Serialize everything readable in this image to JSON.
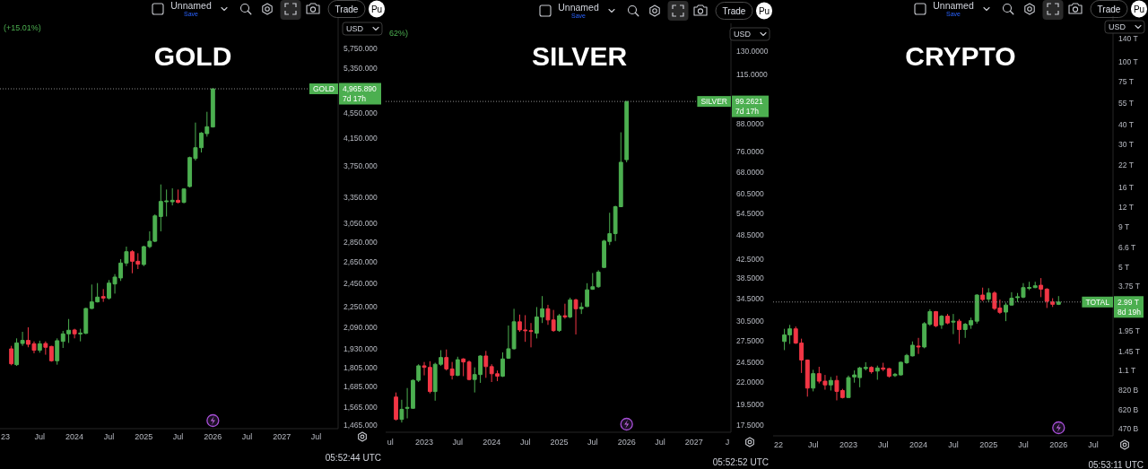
{
  "chart_data": [
    {
      "type": "candlestick",
      "title": "GOLD",
      "x": [
        "2023-02",
        "2023-03",
        "2023-04",
        "2023-05",
        "2023-06",
        "2023-07",
        "2023-08",
        "2023-09",
        "2023-10",
        "2023-11",
        "2023-12",
        "2024-01",
        "2024-02",
        "2024-03",
        "2024-04",
        "2024-05",
        "2024-06",
        "2024-07",
        "2024-08",
        "2024-09",
        "2024-10",
        "2024-11",
        "2024-12",
        "2025-01",
        "2025-02",
        "2025-03",
        "2025-04",
        "2025-05",
        "2025-06",
        "2025-07",
        "2025-08",
        "2025-09",
        "2025-10",
        "2025-11",
        "2025-12",
        "2026-01"
      ],
      "ohlc": [
        [
          1932,
          1953,
          1820,
          1830
        ],
        [
          1824,
          2007,
          1816,
          1974
        ],
        [
          1970,
          2055,
          1953,
          1992
        ],
        [
          1992,
          2089,
          1943,
          1964
        ],
        [
          1968,
          1985,
          1901,
          1922
        ],
        [
          1922,
          1990,
          1905,
          1968
        ],
        [
          1970,
          1985,
          1891,
          1943
        ],
        [
          1949,
          1953,
          1844,
          1850
        ],
        [
          1850,
          2007,
          1824,
          1990
        ],
        [
          1985,
          2062,
          1938,
          2040
        ],
        [
          2040,
          2153,
          1974,
          2067
        ],
        [
          2069,
          2078,
          2007,
          2040
        ],
        [
          2040,
          2078,
          1985,
          2046
        ],
        [
          2044,
          2242,
          2038,
          2237
        ],
        [
          2237,
          2440,
          2232,
          2291
        ],
        [
          2291,
          2453,
          2286,
          2331
        ],
        [
          2336,
          2400,
          2291,
          2323
        ],
        [
          2323,
          2480,
          2311,
          2453
        ],
        [
          2445,
          2534,
          2361,
          2507
        ],
        [
          2499,
          2675,
          2472,
          2638
        ],
        [
          2638,
          2800,
          2609,
          2749
        ],
        [
          2749,
          2764,
          2542,
          2655
        ],
        [
          2655,
          2734,
          2581,
          2627
        ],
        [
          2624,
          2809,
          2609,
          2800
        ],
        [
          2800,
          2960,
          2785,
          2855
        ],
        [
          2855,
          3148,
          2846,
          3131
        ],
        [
          3124,
          3509,
          2960,
          3299
        ],
        [
          3295,
          3445,
          3124,
          3306
        ],
        [
          3295,
          3460,
          3252,
          3313
        ],
        [
          3313,
          3445,
          3277,
          3288
        ],
        [
          3288,
          3460,
          3277,
          3452
        ],
        [
          3483,
          3882,
          3471,
          3869
        ],
        [
          3856,
          4393,
          3827,
          4010
        ],
        [
          4010,
          4243,
          3941,
          4229
        ],
        [
          4220,
          4568,
          4174,
          4327
        ],
        [
          4323,
          4965.89,
          4315,
          4965.89
        ]
      ],
      "colors": [
        "#f23645",
        "#4caf50",
        "#4caf50",
        "#f23645",
        "#f23645",
        "#4caf50",
        "#f23645",
        "#f23645",
        "#4caf50",
        "#4caf50",
        "#4caf50",
        "#f23645",
        "#4caf50",
        "#4caf50",
        "#4caf50",
        "#4caf50",
        "#f23645",
        "#4caf50",
        "#4caf50",
        "#4caf50",
        "#4caf50",
        "#f23645",
        "#f23645",
        "#4caf50",
        "#4caf50",
        "#4caf50",
        "#4caf50",
        "#4caf50",
        "#4caf50",
        "#f23645",
        "#4caf50",
        "#4caf50",
        "#4caf50",
        "#4caf50",
        "#4caf50",
        "#4caf50"
      ],
      "xlim": [
        "2022-12-03",
        "2027-10-25"
      ],
      "xticks": [
        {
          "value": "2023-01",
          "label": "23"
        },
        {
          "value": "2023-07",
          "label": "Jul"
        },
        {
          "value": "2024-01",
          "label": "2024"
        },
        {
          "value": "2024-07",
          "label": "Jul"
        },
        {
          "value": "2025-01",
          "label": "2025"
        },
        {
          "value": "2025-07",
          "label": "Jul"
        },
        {
          "value": "2026-01",
          "label": "2026"
        },
        {
          "value": "2026-07",
          "label": "Jul"
        },
        {
          "value": "2027-01",
          "label": "2027"
        },
        {
          "value": "2027-07",
          "label": "Jul"
        }
      ],
      "ylim": [
        1446,
        6423
      ],
      "yticks": [
        {
          "value": 5750,
          "label": "5,750.000"
        },
        {
          "value": 5350,
          "label": "5,350.000"
        },
        {
          "value": 4550,
          "label": "4,550.000"
        },
        {
          "value": 4150,
          "label": "4,150.000"
        },
        {
          "value": 3750,
          "label": "3,750.000"
        },
        {
          "value": 3350,
          "label": "3,350.000"
        },
        {
          "value": 3050,
          "label": "3,050.000"
        },
        {
          "value": 2850,
          "label": "2,850.000"
        },
        {
          "value": 2650,
          "label": "2,650.000"
        },
        {
          "value": 2450,
          "label": "2,450.000"
        },
        {
          "value": 2250,
          "label": "2,250.000"
        },
        {
          "value": 2090,
          "label": "2,090.000"
        },
        {
          "value": 1930,
          "label": "1,930.000"
        },
        {
          "value": 1805,
          "label": "1,805.000"
        },
        {
          "value": 1685,
          "label": "1,685.000"
        },
        {
          "value": 1565,
          "label": "1,565.000"
        },
        {
          "value": 1465,
          "label": "1,465.000"
        }
      ],
      "log": true,
      "ref_lines": [
        {
          "axis": "y",
          "value": 4965.89,
          "label": "GOLD",
          "color": "#8c8c8c",
          "line_style": "dotted"
        }
      ],
      "annotations": [
        "05:52:44 UTC",
        "USD",
        "Unnamed",
        "Save",
        "Trade",
        "Pu",
        "4,965.890",
        "7d 17h",
        "(+15.01%)"
      ]
    },
    {
      "type": "candlestick",
      "title": "SILVER",
      "x": [
        "2022-08",
        "2022-09",
        "2022-10",
        "2022-11",
        "2022-12",
        "2023-01",
        "2023-02",
        "2023-03",
        "2023-04",
        "2023-05",
        "2023-06",
        "2023-07",
        "2023-08",
        "2023-09",
        "2023-10",
        "2023-11",
        "2023-12",
        "2024-01",
        "2024-02",
        "2024-03",
        "2024-04",
        "2024-05",
        "2024-06",
        "2024-07",
        "2024-08",
        "2024-09",
        "2024-10",
        "2024-11",
        "2024-12",
        "2025-01",
        "2025-02",
        "2025-03",
        "2025-04",
        "2025-05",
        "2025-06",
        "2025-07",
        "2025-08",
        "2025-09",
        "2025-10",
        "2025-11",
        "2025-12",
        "2026-01"
      ],
      "ohlc": [
        [
          20.3,
          20.8,
          17.9,
          18.0
        ],
        [
          18.0,
          20.0,
          17.7,
          19.0
        ],
        [
          19.1,
          21.3,
          18.1,
          19.2
        ],
        [
          19.1,
          22.3,
          19.1,
          22.2
        ],
        [
          22.2,
          24.2,
          22.0,
          24.0
        ],
        [
          24.0,
          24.5,
          22.8,
          23.8
        ],
        [
          23.8,
          24.6,
          20.7,
          20.9
        ],
        [
          20.9,
          24.4,
          19.9,
          24.2
        ],
        [
          24.2,
          26.1,
          24.0,
          25.1
        ],
        [
          25.1,
          26.2,
          23.4,
          23.6
        ],
        [
          23.6,
          24.5,
          22.3,
          22.8
        ],
        [
          22.8,
          25.2,
          22.7,
          24.8
        ],
        [
          24.9,
          25.0,
          22.7,
          24.5
        ],
        [
          24.5,
          24.7,
          22.2,
          22.3
        ],
        [
          22.3,
          23.8,
          20.8,
          22.9
        ],
        [
          22.9,
          25.4,
          21.9,
          25.3
        ],
        [
          25.3,
          26.0,
          22.5,
          23.9
        ],
        [
          23.9,
          24.2,
          22.0,
          23.0
        ],
        [
          23.0,
          23.4,
          22.1,
          22.7
        ],
        [
          22.7,
          25.8,
          22.6,
          24.9
        ],
        [
          25.0,
          29.8,
          24.9,
          26.3
        ],
        [
          26.3,
          32.6,
          26.2,
          30.4
        ],
        [
          30.4,
          31.6,
          28.8,
          29.1
        ],
        [
          29.1,
          31.5,
          27.3,
          29.0
        ],
        [
          29.0,
          30.2,
          26.5,
          28.9
        ],
        [
          28.6,
          32.9,
          27.8,
          31.2
        ],
        [
          31.2,
          34.9,
          30.2,
          32.6
        ],
        [
          32.6,
          33.3,
          29.9,
          30.7
        ],
        [
          30.7,
          32.4,
          28.8,
          29.0
        ],
        [
          29.0,
          31.7,
          28.8,
          31.4
        ],
        [
          31.4,
          33.5,
          30.9,
          31.2
        ],
        [
          31.2,
          34.6,
          31.0,
          34.2
        ],
        [
          34.2,
          34.4,
          28.4,
          32.6
        ],
        [
          32.6,
          33.7,
          31.7,
          32.9
        ],
        [
          33.0,
          37.4,
          32.9,
          36.1
        ],
        [
          36.2,
          39.5,
          36.1,
          36.7
        ],
        [
          36.7,
          40.1,
          36.5,
          39.7
        ],
        [
          40.7,
          47.2,
          40.6,
          46.9
        ],
        [
          46.8,
          54.6,
          45.9,
          48.8
        ],
        [
          48.8,
          56.7,
          46.9,
          56.4
        ],
        [
          56.4,
          84.1,
          56.3,
          71.6
        ],
        [
          72.6,
          99.2621,
          71.6,
          99.2621
        ]
      ],
      "colors": [
        "#f23645",
        "#4caf50",
        "#4caf50",
        "#4caf50",
        "#4caf50",
        "#f23645",
        "#f23645",
        "#4caf50",
        "#4caf50",
        "#f23645",
        "#f23645",
        "#4caf50",
        "#f23645",
        "#f23645",
        "#4caf50",
        "#4caf50",
        "#f23645",
        "#f23645",
        "#f23645",
        "#4caf50",
        "#4caf50",
        "#4caf50",
        "#f23645",
        "#f23645",
        "#f23645",
        "#4caf50",
        "#4caf50",
        "#f23645",
        "#f23645",
        "#4caf50",
        "#f23645",
        "#4caf50",
        "#f23645",
        "#4caf50",
        "#4caf50",
        "#4caf50",
        "#4caf50",
        "#4caf50",
        "#4caf50",
        "#4caf50",
        "#4caf50",
        "#4caf50"
      ],
      "xlim": [
        "2022-06-06",
        "2027-07-20"
      ],
      "xticks": [
        {
          "value": "2022-07",
          "label": "ul"
        },
        {
          "value": "2023-01",
          "label": "2023"
        },
        {
          "value": "2023-07",
          "label": "Jul"
        },
        {
          "value": "2024-01",
          "label": "2024"
        },
        {
          "value": "2024-07",
          "label": "Jul"
        },
        {
          "value": "2025-01",
          "label": "2025"
        },
        {
          "value": "2025-07",
          "label": "Jul"
        },
        {
          "value": "2026-01",
          "label": "2026"
        },
        {
          "value": "2026-07",
          "label": "Jul"
        },
        {
          "value": "2027-01",
          "label": "2027"
        },
        {
          "value": "2027-07",
          "label": "J"
        }
      ],
      "ylim": [
        16.8,
        151
      ],
      "yticks": [
        {
          "value": 130,
          "label": "130.0000"
        },
        {
          "value": 115,
          "label": "115.0000"
        },
        {
          "value": 88,
          "label": "88.0000"
        },
        {
          "value": 76,
          "label": "76.0000"
        },
        {
          "value": 68,
          "label": "68.0000"
        },
        {
          "value": 60.5,
          "label": "60.5000"
        },
        {
          "value": 54.5,
          "label": "54.5000"
        },
        {
          "value": 48.5,
          "label": "48.5000"
        },
        {
          "value": 42.5,
          "label": "42.5000"
        },
        {
          "value": 38.5,
          "label": "38.5000"
        },
        {
          "value": 34.5,
          "label": "34.5000"
        },
        {
          "value": 30.5,
          "label": "30.5000"
        },
        {
          "value": 27.5,
          "label": "27.5000"
        },
        {
          "value": 24.5,
          "label": "24.5000"
        },
        {
          "value": 22,
          "label": "22.0000"
        },
        {
          "value": 19.5,
          "label": "19.5000"
        },
        {
          "value": 17.5,
          "label": "17.5000"
        }
      ],
      "log": true,
      "ref_lines": [
        {
          "axis": "y",
          "value": 99.2621,
          "label": "SILVER",
          "color": "#8c8c8c",
          "line_style": "dotted"
        }
      ],
      "annotations": [
        "05:52:52 UTC",
        "USD",
        "Unnamed",
        "Save",
        "Trade",
        "Pu",
        "99.2621",
        "7d 17h",
        "62%)"
      ]
    },
    {
      "type": "candlestick",
      "title": "CRYPTO",
      "x": [
        "2022-02",
        "2022-03",
        "2022-04",
        "2022-05",
        "2022-06",
        "2022-07",
        "2022-08",
        "2022-09",
        "2022-10",
        "2022-11",
        "2022-12",
        "2023-01",
        "2023-02",
        "2023-03",
        "2023-04",
        "2023-05",
        "2023-06",
        "2023-07",
        "2023-08",
        "2023-09",
        "2023-10",
        "2023-11",
        "2023-12",
        "2024-01",
        "2024-02",
        "2024-03",
        "2024-04",
        "2024-05",
        "2024-06",
        "2024-07",
        "2024-08",
        "2024-09",
        "2024-10",
        "2024-11",
        "2024-12",
        "2025-01",
        "2025-02",
        "2025-03",
        "2025-04",
        "2025-05",
        "2025-06",
        "2025-07",
        "2025-08",
        "2025-09",
        "2025-10",
        "2025-11",
        "2025-12",
        "2026-01"
      ],
      "ohlc": [
        [
          1680000000000.0,
          2020000000000.0,
          1480000000000.0,
          1850000000000.0
        ],
        [
          1850000000000.0,
          2140000000000.0,
          1620000000000.0,
          2020000000000.0
        ],
        [
          2020000000000.0,
          2090000000000.0,
          1620000000000.0,
          1640000000000.0
        ],
        [
          1640000000000.0,
          1750000000000.0,
          1060000000000.0,
          1280000000000.0
        ],
        [
          1280000000000.0,
          1290000000000.0,
          750000000000.0,
          850000000000.0
        ],
        [
          850000000000.0,
          1110000000000.0,
          810000000000.0,
          1050000000000.0
        ],
        [
          1050000000000.0,
          1160000000000.0,
          910000000000.0,
          940000000000.0
        ],
        [
          940000000000.0,
          1030000000000.0,
          830000000000.0,
          890000000000.0
        ],
        [
          890000000000.0,
          1000000000000.0,
          820000000000.0,
          950000000000.0
        ],
        [
          950000000000.0,
          1020000000000.0,
          710000000000.0,
          810000000000.0
        ],
        [
          820000000000.0,
          840000000000.0,
          730000000000.0,
          740000000000.0
        ],
        [
          740000000000.0,
          1020000000000.0,
          740000000000.0,
          990000000000.0
        ],
        [
          1000000000000.0,
          1100000000000.0,
          920000000000.0,
          1030000000000.0
        ],
        [
          990000000000.0,
          1160000000000.0,
          860000000000.0,
          1140000000000.0
        ],
        [
          1130000000000.0,
          1240000000000.0,
          1100000000000.0,
          1150000000000.0
        ],
        [
          1150000000000.0,
          1170000000000.0,
          1050000000000.0,
          1080000000000.0
        ],
        [
          1090000000000.0,
          1180000000000.0,
          960000000000.0,
          1140000000000.0
        ],
        [
          1140000000000.0,
          1230000000000.0,
          1090000000000.0,
          1120000000000.0
        ],
        [
          1130000000000.0,
          1140000000000.0,
          990000000000.0,
          1010000000000.0
        ],
        [
          1020000000000.0,
          1060000000000.0,
          1000000000000.0,
          1040000000000.0
        ],
        [
          1030000000000.0,
          1250000000000.0,
          1020000000000.0,
          1240000000000.0
        ],
        [
          1230000000000.0,
          1400000000000.0,
          1210000000000.0,
          1370000000000.0
        ],
        [
          1360000000000.0,
          1680000000000.0,
          1350000000000.0,
          1590000000000.0
        ],
        [
          1570000000000.0,
          1770000000000.0,
          1400000000000.0,
          1550000000000.0
        ],
        [
          1550000000000.0,
          2230000000000.0,
          1520000000000.0,
          2180000000000.0
        ],
        [
          2160000000000.0,
          2690000000000.0,
          2110000000000.0,
          2600000000000.0
        ],
        [
          2600000000000.0,
          2620000000000.0,
          2070000000000.0,
          2110000000000.0
        ],
        [
          2140000000000.0,
          2470000000000.0,
          2020000000000.0,
          2430000000000.0
        ],
        [
          2430000000000.0,
          2510000000000.0,
          2160000000000.0,
          2200000000000.0
        ],
        [
          2230000000000.0,
          2510000000000.0,
          1870000000000.0,
          2260000000000.0
        ],
        [
          2260000000000.0,
          2330000000000.0,
          1620000000000.0,
          2000000000000.0
        ],
        [
          2000000000000.0,
          2200000000000.0,
          1770000000000.0,
          2160000000000.0
        ],
        [
          2140000000000.0,
          2380000000000.0,
          2020000000000.0,
          2280000000000.0
        ],
        [
          2260000000000.0,
          3350000000000.0,
          2180000000000.0,
          3310000000000.0
        ],
        [
          3310000000000.0,
          3690000000000.0,
          3030000000000.0,
          3100000000000.0
        ],
        [
          3120000000000.0,
          3660000000000.0,
          2990000000000.0,
          3410000000000.0
        ],
        [
          3410000000000.0,
          3500000000000.0,
          2660000000000.0,
          2720000000000.0
        ],
        [
          2740000000000.0,
          3100000000000.0,
          2510000000000.0,
          2570000000000.0
        ],
        [
          2580000000000.0,
          2960000000000.0,
          2260000000000.0,
          2860000000000.0
        ],
        [
          2860000000000.0,
          3450000000000.0,
          2840000000000.0,
          3160000000000.0
        ],
        [
          3190000000000.0,
          3410000000000.0,
          2990000000000.0,
          3230000000000.0
        ],
        [
          3210000000000.0,
          3940000000000.0,
          3160000000000.0,
          3690000000000.0
        ],
        [
          3660000000000.0,
          4020000000000.0,
          3560000000000.0,
          3700000000000.0
        ],
        [
          3690000000000.0,
          4020000000000.0,
          3660000000000.0,
          3790000000000.0
        ],
        [
          3820000000000.0,
          4240000000000.0,
          3210000000000.0,
          3610000000000.0
        ],
        [
          3610000000000.0,
          3660000000000.0,
          2740000000000.0,
          3020000000000.0
        ],
        [
          2990000000000.0,
          3160000000000.0,
          2780000000000.0,
          2890000000000.0
        ],
        [
          2890000000000.0,
          3260000000000.0,
          2860000000000.0,
          2990000000000.0
        ]
      ],
      "colors": [
        "#4caf50",
        "#4caf50",
        "#f23645",
        "#f23645",
        "#f23645",
        "#4caf50",
        "#f23645",
        "#f23645",
        "#4caf50",
        "#f23645",
        "#f23645",
        "#4caf50",
        "#4caf50",
        "#4caf50",
        "#4caf50",
        "#f23645",
        "#4caf50",
        "#f23645",
        "#f23645",
        "#4caf50",
        "#4caf50",
        "#4caf50",
        "#4caf50",
        "#f23645",
        "#4caf50",
        "#4caf50",
        "#f23645",
        "#4caf50",
        "#f23645",
        "#4caf50",
        "#f23645",
        "#4caf50",
        "#4caf50",
        "#4caf50",
        "#f23645",
        "#4caf50",
        "#f23645",
        "#f23645",
        "#4caf50",
        "#4caf50",
        "#4caf50",
        "#4caf50",
        "#4caf50",
        "#4caf50",
        "#f23645",
        "#f23645",
        "#f23645",
        "#4caf50"
      ],
      "xlim": [
        "2021-12-04",
        "2026-10-12"
      ],
      "xticks": [
        {
          "value": "2022-01",
          "label": "22"
        },
        {
          "value": "2022-07",
          "label": "Jul"
        },
        {
          "value": "2023-01",
          "label": "2023"
        },
        {
          "value": "2023-07",
          "label": "Jul"
        },
        {
          "value": "2024-01",
          "label": "2024"
        },
        {
          "value": "2024-07",
          "label": "Jul"
        },
        {
          "value": "2025-01",
          "label": "2025"
        },
        {
          "value": "2025-07",
          "label": "Jul"
        },
        {
          "value": "2026-01",
          "label": "2026"
        },
        {
          "value": "2026-07",
          "label": "Jul"
        }
      ],
      "ylim": [
        423000000000.0,
        195000000000000.0
      ],
      "yticks": [
        {
          "value": 140000000000000.0,
          "label": "140 T"
        },
        {
          "value": 100000000000000.0,
          "label": "100 T"
        },
        {
          "value": 75000000000000.0,
          "label": "75 T"
        },
        {
          "value": 55000000000000.0,
          "label": "55 T"
        },
        {
          "value": 40000000000000.0,
          "label": "40 T"
        },
        {
          "value": 30000000000000.0,
          "label": "30 T"
        },
        {
          "value": 22000000000000.0,
          "label": "22 T"
        },
        {
          "value": 16000000000000.0,
          "label": "16 T"
        },
        {
          "value": 12000000000000.0,
          "label": "12 T"
        },
        {
          "value": 9000000000000.0,
          "label": "9 T"
        },
        {
          "value": 6600000000000.0,
          "label": "6.6 T"
        },
        {
          "value": 5000000000000.0,
          "label": "5 T"
        },
        {
          "value": 3750000000000.0,
          "label": "3.75 T"
        },
        {
          "value": 1950000000000.0,
          "label": "1.95 T"
        },
        {
          "value": 1450000000000.0,
          "label": "1.45 T"
        },
        {
          "value": 1100000000000.0,
          "label": "1.1 T"
        },
        {
          "value": 820000000000.0,
          "label": "820 B"
        },
        {
          "value": 620000000000.0,
          "label": "620 B"
        },
        {
          "value": 470000000000.0,
          "label": "470 B"
        }
      ],
      "log": true,
      "ref_lines": [
        {
          "axis": "y",
          "value": 2990000000000.0,
          "label": "TOTAL",
          "color": "#8c8c8c",
          "line_style": "dotted"
        }
      ],
      "annotations": [
        "05:53:11 UTC",
        "USD",
        "Unnamed",
        "Save",
        "Trade",
        "Pu",
        "2.99 T",
        "8d 19h"
      ]
    }
  ]
}
